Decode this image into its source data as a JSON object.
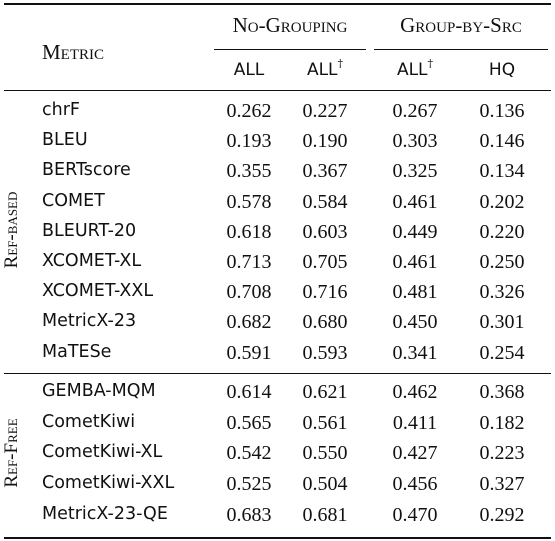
{
  "header": {
    "metric_label": "Metric",
    "group_no_grouping": "No-Grouping",
    "group_by_src": "Group-by-Src",
    "sub_all": "ALL",
    "sub_all_dagger": "ALL",
    "dagger": "†",
    "sub_hq": "HQ"
  },
  "groups": {
    "ref_based": "Ref-based",
    "ref_free": "Ref-Free"
  },
  "rows_ref_based": [
    {
      "metric": "chrF",
      "all": "0.262",
      "all_d": "0.227",
      "src_all_d": "0.267",
      "hq": "0.136"
    },
    {
      "metric": "BLEU",
      "all": "0.193",
      "all_d": "0.190",
      "src_all_d": "0.303",
      "hq": "0.146"
    },
    {
      "metric": "BERTscore",
      "all": "0.355",
      "all_d": "0.367",
      "src_all_d": "0.325",
      "hq": "0.134"
    },
    {
      "metric": "COMET",
      "all": "0.578",
      "all_d": "0.584",
      "src_all_d": "0.461",
      "hq": "0.202"
    },
    {
      "metric": "BLEURT-20",
      "all": "0.618",
      "all_d": "0.603",
      "src_all_d": "0.449",
      "hq": "0.220"
    },
    {
      "metric": "XCOMET-XL",
      "all": "0.713",
      "all_d": "0.705",
      "src_all_d": "0.461",
      "hq": "0.250"
    },
    {
      "metric": "XCOMET-XXL",
      "all": "0.708",
      "all_d": "0.716",
      "src_all_d": "0.481",
      "hq": "0.326"
    },
    {
      "metric": "MetricX-23",
      "all": "0.682",
      "all_d": "0.680",
      "src_all_d": "0.450",
      "hq": "0.301"
    },
    {
      "metric": "MaTESe",
      "all": "0.591",
      "all_d": "0.593",
      "src_all_d": "0.341",
      "hq": "0.254"
    }
  ],
  "rows_ref_free": [
    {
      "metric": "GEMBA-MQM",
      "all": "0.614",
      "all_d": "0.621",
      "src_all_d": "0.462",
      "hq": "0.368"
    },
    {
      "metric": "CometKiwi",
      "all": "0.565",
      "all_d": "0.561",
      "src_all_d": "0.411",
      "hq": "0.182"
    },
    {
      "metric": "CometKiwi-XL",
      "all": "0.542",
      "all_d": "0.550",
      "src_all_d": "0.427",
      "hq": "0.223"
    },
    {
      "metric": "CometKiwi-XXL",
      "all": "0.525",
      "all_d": "0.504",
      "src_all_d": "0.456",
      "hq": "0.327"
    },
    {
      "metric": "MetricX-23-QE",
      "all": "0.683",
      "all_d": "0.681",
      "src_all_d": "0.470",
      "hq": "0.292"
    }
  ]
}
